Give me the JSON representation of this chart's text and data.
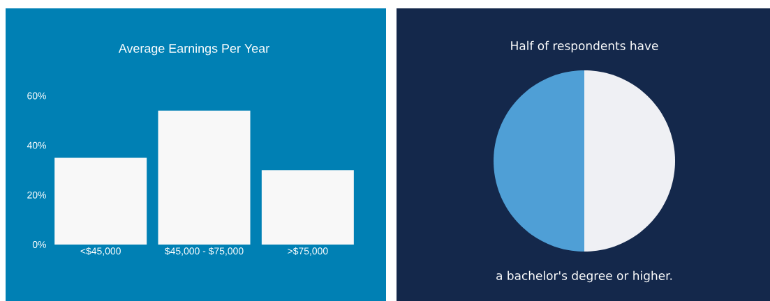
{
  "chart_data": [
    {
      "type": "bar",
      "title": "Average Earnings Per Year",
      "categories": [
        "<$45,000",
        "$45,000 - $75,000",
        ">$75,000"
      ],
      "values": [
        35,
        54,
        30
      ],
      "color": "#f8f8f8",
      "ylim": [
        0,
        60
      ],
      "yticks": [
        {
          "value": 0,
          "label": "0%"
        },
        {
          "value": 20,
          "label": "20%"
        },
        {
          "value": 40,
          "label": "40%"
        },
        {
          "value": 60,
          "label": "60%"
        }
      ]
    },
    {
      "type": "pie",
      "title": "Half of respondents have",
      "annotations": [
        "a bachelor's degree or higher."
      ],
      "categories": [
        null,
        null
      ],
      "values": [
        50,
        50
      ],
      "colors": [
        "#4f9fd6",
        "#eff0f4"
      ]
    }
  ]
}
